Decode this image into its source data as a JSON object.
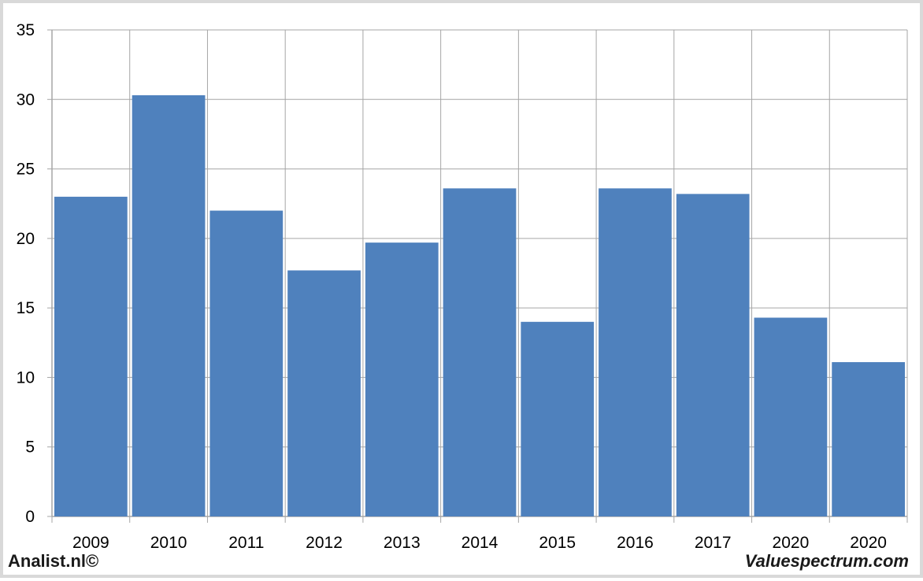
{
  "chart_data": {
    "type": "bar",
    "categories": [
      "2009",
      "2010",
      "2011",
      "2012",
      "2013",
      "2014",
      "2015",
      "2016",
      "2017",
      "2020",
      "2020"
    ],
    "values": [
      23.0,
      30.3,
      22.0,
      17.7,
      19.7,
      23.6,
      14.0,
      23.6,
      23.2,
      14.3,
      11.1
    ],
    "title": "",
    "xlabel": "",
    "ylabel": "",
    "ylim": [
      0,
      35
    ],
    "yticks": [
      "0",
      "5",
      "10",
      "15",
      "20",
      "25",
      "30",
      "35"
    ],
    "grid": true,
    "legend": "none",
    "colors": {
      "bar": "#4f81bd",
      "grid": "#a6a6a6",
      "frame": "#d9d9d9"
    }
  },
  "footer": {
    "left": "Analist.nl©",
    "right": "Valuespectrum.com"
  }
}
